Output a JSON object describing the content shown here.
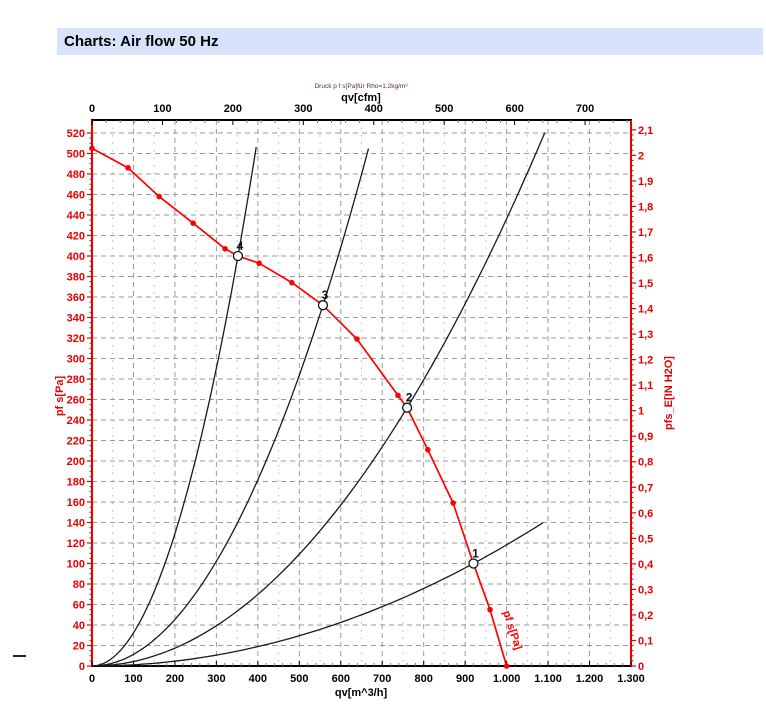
{
  "header": {
    "title": "Charts: Air flow 50 Hz",
    "bg_color": "#d6e3fa"
  },
  "chart_data": {
    "type": "line",
    "note": "Druck p f s[Pa]für Rho=1,2kg/m³",
    "axes": {
      "bottom": {
        "title": "qv[m^3/h]",
        "min": 0,
        "max": 1300,
        "tick_step": 100,
        "tick_labels": [
          "0",
          "100",
          "200",
          "300",
          "400",
          "500",
          "600",
          "700",
          "800",
          "900",
          "1.000",
          "1.100",
          "1.200",
          "1.300"
        ]
      },
      "top": {
        "title": "qv[cfm]",
        "min": 0,
        "max": 765.2,
        "tick_step": 100,
        "tick_labels": [
          "0",
          "100",
          "200",
          "300",
          "400",
          "500",
          "600",
          "700"
        ]
      },
      "left": {
        "title": "pf s[Pa]",
        "min": 0,
        "max": 520,
        "tick_step": 20,
        "tick_labels": [
          "0",
          "20",
          "40",
          "60",
          "80",
          "100",
          "120",
          "140",
          "160",
          "180",
          "200",
          "220",
          "240",
          "260",
          "280",
          "300",
          "320",
          "340",
          "360",
          "380",
          "400",
          "420",
          "440",
          "460",
          "480",
          "500",
          "520"
        ]
      },
      "right": {
        "title": "pfs_E[IN H2O]",
        "min": 0,
        "max": 2.1,
        "tick_step": 0.1,
        "tick_labels": [
          "0",
          "0,1",
          "0,2",
          "0,3",
          "0,4",
          "0,5",
          "0,6",
          "0,7",
          "0,8",
          "0,9",
          "1",
          "1,1",
          "1,2",
          "1,3",
          "1,4",
          "1,5",
          "1,6",
          "1,7",
          "1,8",
          "1,9",
          "2",
          "2,1"
        ]
      }
    },
    "fan_curve": {
      "label": "pf s[Pa]",
      "points_qv_pa": [
        [
          0,
          505
        ],
        [
          87,
          486
        ],
        [
          162,
          458
        ],
        [
          244,
          432
        ],
        [
          321,
          407
        ],
        [
          352,
          400
        ],
        [
          403,
          393
        ],
        [
          482,
          374
        ],
        [
          557,
          352
        ],
        [
          639,
          319
        ],
        [
          738,
          264
        ],
        [
          760,
          252
        ],
        [
          810,
          211
        ],
        [
          871,
          159
        ],
        [
          920,
          100
        ],
        [
          960,
          55
        ],
        [
          1000,
          0
        ]
      ]
    },
    "operating_points": [
      {
        "label": "1",
        "qv": 920,
        "pa": 100
      },
      {
        "label": "2",
        "qv": 760,
        "pa": 252
      },
      {
        "label": "3",
        "qv": 557,
        "pa": 352
      },
      {
        "label": "4",
        "qv": 352,
        "pa": 400
      }
    ],
    "system_curves": [
      {
        "label": "1",
        "qv_op": 920,
        "pa_op": 100,
        "qv_end": 1088
      },
      {
        "label": "2",
        "qv_op": 760,
        "pa_op": 252,
        "qv_end": 1092
      },
      {
        "label": "3",
        "qv_op": 557,
        "pa_op": 352,
        "qv_end": 667
      },
      {
        "label": "4",
        "qv_op": 352,
        "pa_op": 400,
        "qv_end": 396
      }
    ],
    "colors": {
      "curve_red": "#ff0000",
      "axis_red": "#e80000",
      "axis_black": "#000000",
      "grid_major": "#9a9a9a",
      "grid_minor": "#b8b8b8",
      "note_color": "#553333",
      "op_label_color": "#111111"
    }
  }
}
